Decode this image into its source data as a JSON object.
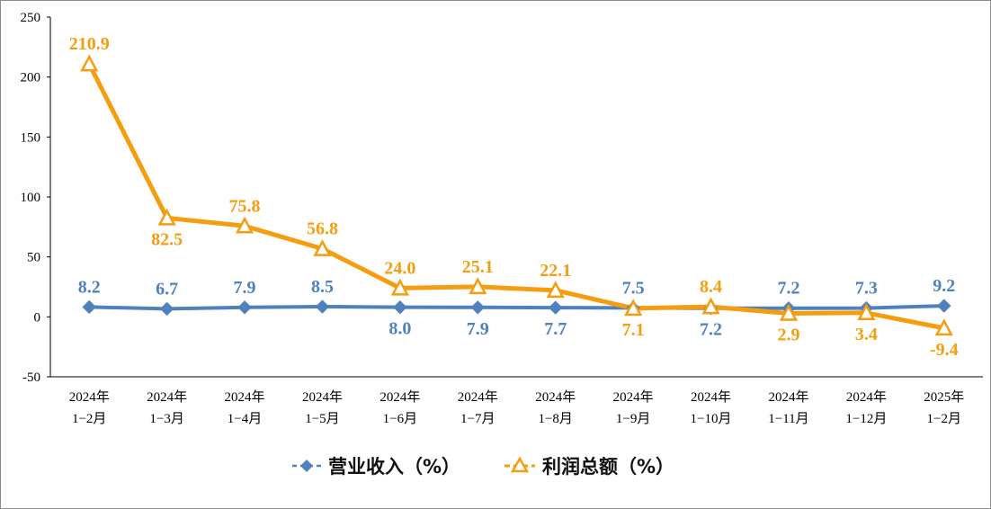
{
  "chart_data": {
    "type": "line",
    "categories": [
      [
        "2024年",
        "1−2月"
      ],
      [
        "2024年",
        "1−3月"
      ],
      [
        "2024年",
        "1−4月"
      ],
      [
        "2024年",
        "1−5月"
      ],
      [
        "2024年",
        "1−6月"
      ],
      [
        "2024年",
        "1−7月"
      ],
      [
        "2024年",
        "1−8月"
      ],
      [
        "2024年",
        "1−9月"
      ],
      [
        "2024年",
        "1−10月"
      ],
      [
        "2024年",
        "1−11月"
      ],
      [
        "2024年",
        "1−12月"
      ],
      [
        "2025年",
        "1−2月"
      ]
    ],
    "series": [
      {
        "name": "营业收入（%）",
        "color": "#4f81bd",
        "marker": "diamond",
        "values": [
          8.2,
          6.7,
          7.9,
          8.5,
          8.0,
          7.9,
          7.7,
          7.5,
          7.2,
          7.2,
          7.3,
          9.2
        ],
        "labels": [
          "8.2",
          "6.7",
          "7.9",
          "8.5",
          "8.0",
          "7.9",
          "7.7",
          "7.5",
          "7.2",
          "7.2",
          "7.3",
          "9.2"
        ],
        "label_pos": [
          "above",
          "above",
          "above",
          "above",
          "below",
          "below",
          "below",
          "above",
          "below",
          "above",
          "above",
          "above"
        ]
      },
      {
        "name": "利润总额（%）",
        "color": "#f59d0e",
        "marker": "triangle",
        "values": [
          210.9,
          82.5,
          75.8,
          56.8,
          24.0,
          25.1,
          22.1,
          7.1,
          8.4,
          2.9,
          3.4,
          -9.4
        ],
        "labels": [
          "210.9",
          "82.5",
          "75.8",
          "56.8",
          "24.0",
          "25.1",
          "22.1",
          "7.1",
          "8.4",
          "2.9",
          "3.4",
          "-9.4"
        ],
        "label_pos": [
          "above",
          "below",
          "above",
          "above",
          "above",
          "above",
          "above",
          "below",
          "above",
          "below",
          "below",
          "below"
        ]
      }
    ],
    "yticks": [
      250,
      200,
      150,
      100,
      50,
      0,
      -50
    ],
    "ylim": [
      -50,
      250
    ],
    "title": "",
    "xlabel": "",
    "ylabel": "",
    "legend_position": "bottom-center"
  }
}
